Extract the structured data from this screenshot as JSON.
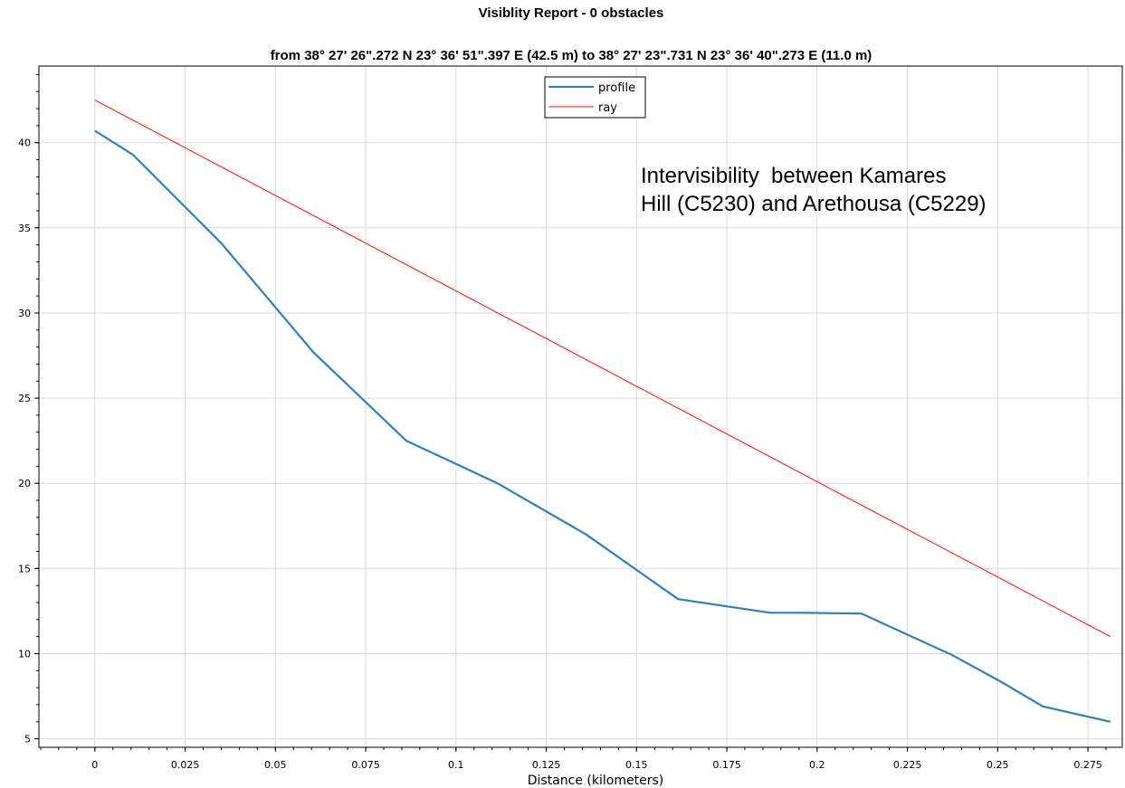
{
  "chart_data": {
    "type": "line",
    "title": "Visiblity Report - 0 obstacles",
    "subtitle": "from 38° 27' 26\".272 N 23° 36' 51\".397 E (42.5 m) to 38° 27' 23\".731 N 23° 36' 40\".273 E (11.0 m)",
    "xlabel": "Distance (kilometers)",
    "ylabel": "",
    "xlim": [
      -0.0155,
      0.2845
    ],
    "ylim": [
      4.5,
      44.5
    ],
    "xticks": [
      0,
      0.025,
      0.05,
      0.075,
      0.1,
      0.125,
      0.15,
      0.175,
      0.2,
      0.225,
      0.25,
      0.275
    ],
    "yticks": [
      5,
      10,
      15,
      20,
      25,
      30,
      35,
      40
    ],
    "grid": true,
    "legend_position": "top-center",
    "annotation": [
      "Intervisibility  between Kamares",
      "Hill (C5230) and Arethousa (C5229)"
    ],
    "series": [
      {
        "name": "profile",
        "color": "#2e7fbf",
        "x": [
          0,
          0.0105,
          0.035,
          0.0605,
          0.0862,
          0.1115,
          0.136,
          0.1615,
          0.187,
          0.1955,
          0.2123,
          0.2375,
          0.2505,
          0.2625,
          0.2812
        ],
        "y": [
          40.7,
          39.3,
          34.1,
          27.7,
          22.5,
          20.0,
          17.0,
          13.2,
          12.4,
          12.4,
          12.35,
          9.9,
          8.4,
          6.9,
          6.0
        ]
      },
      {
        "name": "ray",
        "color": "#ff1a1a",
        "x": [
          0,
          0.2812
        ],
        "y": [
          42.5,
          11.0
        ]
      }
    ]
  }
}
